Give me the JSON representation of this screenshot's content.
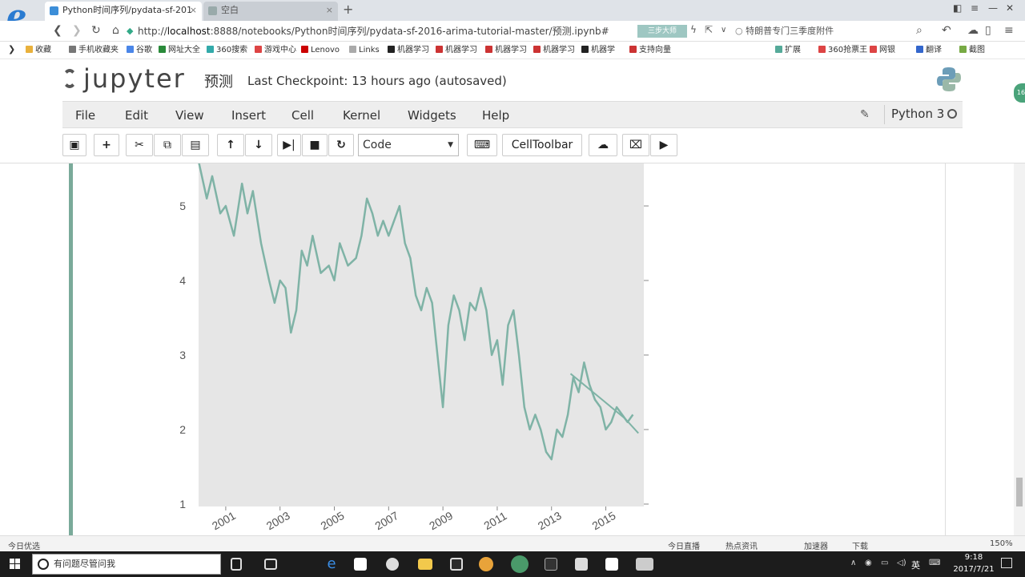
{
  "browser": {
    "tabs": [
      {
        "label": "Python时间序列/pydata-sf-201",
        "active": true
      },
      {
        "label": "空白",
        "active": false
      }
    ],
    "new_tab": "+",
    "url_prefix": "http://",
    "url_host": "localhost",
    "url_rest": ":8888/notebooks/Python时间序列/pydata-sf-2016-arima-tutorial-master/预测.ipynb#",
    "addr_button": "三步大师",
    "search_text": "特朗普专门三季度附件",
    "bookmarks": [
      "收藏",
      "手机收藏夹",
      "谷歌",
      "网址大全",
      "360搜索",
      "游戏中心",
      "Lenovo",
      "Links",
      "机器学习",
      "机器学习",
      "机器学习",
      "机器学习",
      "机器学",
      "支持向量"
    ],
    "bookmarks_right": [
      "扩展",
      "360抢票王",
      "网银",
      "翻译",
      "截图"
    ]
  },
  "jupyter": {
    "logo_text": "jupyter",
    "notebook_name": "预测",
    "checkpoint": "Last Checkpoint: 13 hours ago (autosaved)",
    "menus": [
      "File",
      "Edit",
      "View",
      "Insert",
      "Cell",
      "Kernel",
      "Widgets",
      "Help"
    ],
    "kernel": "Python 3",
    "cell_type": "Code",
    "celltoolbar_label": "CellToolbar",
    "side_badge": "16"
  },
  "icons": {
    "save": "floppy-icon",
    "add": "plus-icon",
    "cut": "scissors-icon",
    "copy": "copy-icon",
    "paste": "paste-icon",
    "up": "arrow-up-icon",
    "down": "arrow-down-icon",
    "run": "step-forward-icon",
    "stop": "stop-icon",
    "restart": "restart-icon",
    "keyboard": "keyboard-icon",
    "upload": "cloud-upload-icon",
    "gift": "gift-icon",
    "youtube": "play-icon"
  },
  "chart_data": {
    "type": "line",
    "series": [
      {
        "color": "#7fb3a6",
        "x": [
          2000.0,
          2000.3,
          2000.5,
          2000.8,
          2001.0,
          2001.3,
          2001.6,
          2001.8,
          2002.0,
          2002.3,
          2002.6,
          2002.8,
          2003.0,
          2003.2,
          2003.4,
          2003.6,
          2003.8,
          2004.0,
          2004.2,
          2004.5,
          2004.8,
          2005.0,
          2005.2,
          2005.5,
          2005.8,
          2006.0,
          2006.2,
          2006.4,
          2006.6,
          2006.8,
          2007.0,
          2007.2,
          2007.4,
          2007.6,
          2007.8,
          2008.0,
          2008.2,
          2008.4,
          2008.6,
          2008.8,
          2009.0,
          2009.2,
          2009.4,
          2009.6,
          2009.8,
          2010.0,
          2010.2,
          2010.4,
          2010.6,
          2010.8,
          2011.0,
          2011.2,
          2011.4,
          2011.6,
          2011.8,
          2012.0,
          2012.2,
          2012.4,
          2012.6,
          2012.8,
          2013.0,
          2013.2,
          2013.4,
          2013.6,
          2013.8,
          2014.0,
          2014.2,
          2014.4,
          2014.6,
          2014.8,
          2015.0,
          2015.2,
          2015.4,
          2015.6,
          2015.8,
          2016.0
        ],
        "y": [
          5.6,
          5.1,
          5.4,
          4.9,
          5.0,
          4.6,
          5.3,
          4.9,
          5.2,
          4.5,
          4.0,
          3.7,
          4.0,
          3.9,
          3.3,
          3.6,
          4.4,
          4.2,
          4.6,
          4.1,
          4.2,
          4.0,
          4.5,
          4.2,
          4.3,
          4.6,
          5.1,
          4.9,
          4.6,
          4.8,
          4.6,
          4.8,
          5.0,
          4.5,
          4.3,
          3.8,
          3.6,
          3.9,
          3.7,
          3.0,
          2.3,
          3.4,
          3.8,
          3.6,
          3.2,
          3.7,
          3.6,
          3.9,
          3.6,
          3.0,
          3.2,
          2.6,
          3.4,
          3.6,
          3.0,
          2.3,
          2.0,
          2.2,
          2.0,
          1.7,
          1.6,
          2.0,
          1.9,
          2.2,
          2.7,
          2.5,
          2.9,
          2.6,
          2.4,
          2.3,
          2.0,
          2.1,
          2.3,
          2.2,
          2.1,
          2.2
        ]
      },
      {
        "color": "#7fb3a6",
        "x": [
          2013.7,
          2014.2,
          2014.7,
          2015.2,
          2015.7,
          2016.2
        ],
        "y": [
          2.75,
          2.6,
          2.45,
          2.3,
          2.15,
          1.95
        ]
      }
    ],
    "xlim": [
      2000.0,
      2016.4
    ],
    "ylim": [
      1,
      5.5
    ],
    "y_ticks": [
      "1",
      "2",
      "3",
      "4",
      "5"
    ],
    "x_ticks": [
      "2001",
      "2003",
      "2005",
      "2007",
      "2009",
      "2011",
      "2013",
      "2015"
    ],
    "background": "#e6e6e6",
    "grid": false
  },
  "status": {
    "left": "今日优选",
    "items": [
      "今日直播",
      "热点资讯",
      "加速器",
      "下载",
      "150%"
    ]
  },
  "taskbar": {
    "search_placeholder": "有问题尽管问我",
    "lang": "英",
    "time": "9:18",
    "date": "2017/7/21"
  }
}
